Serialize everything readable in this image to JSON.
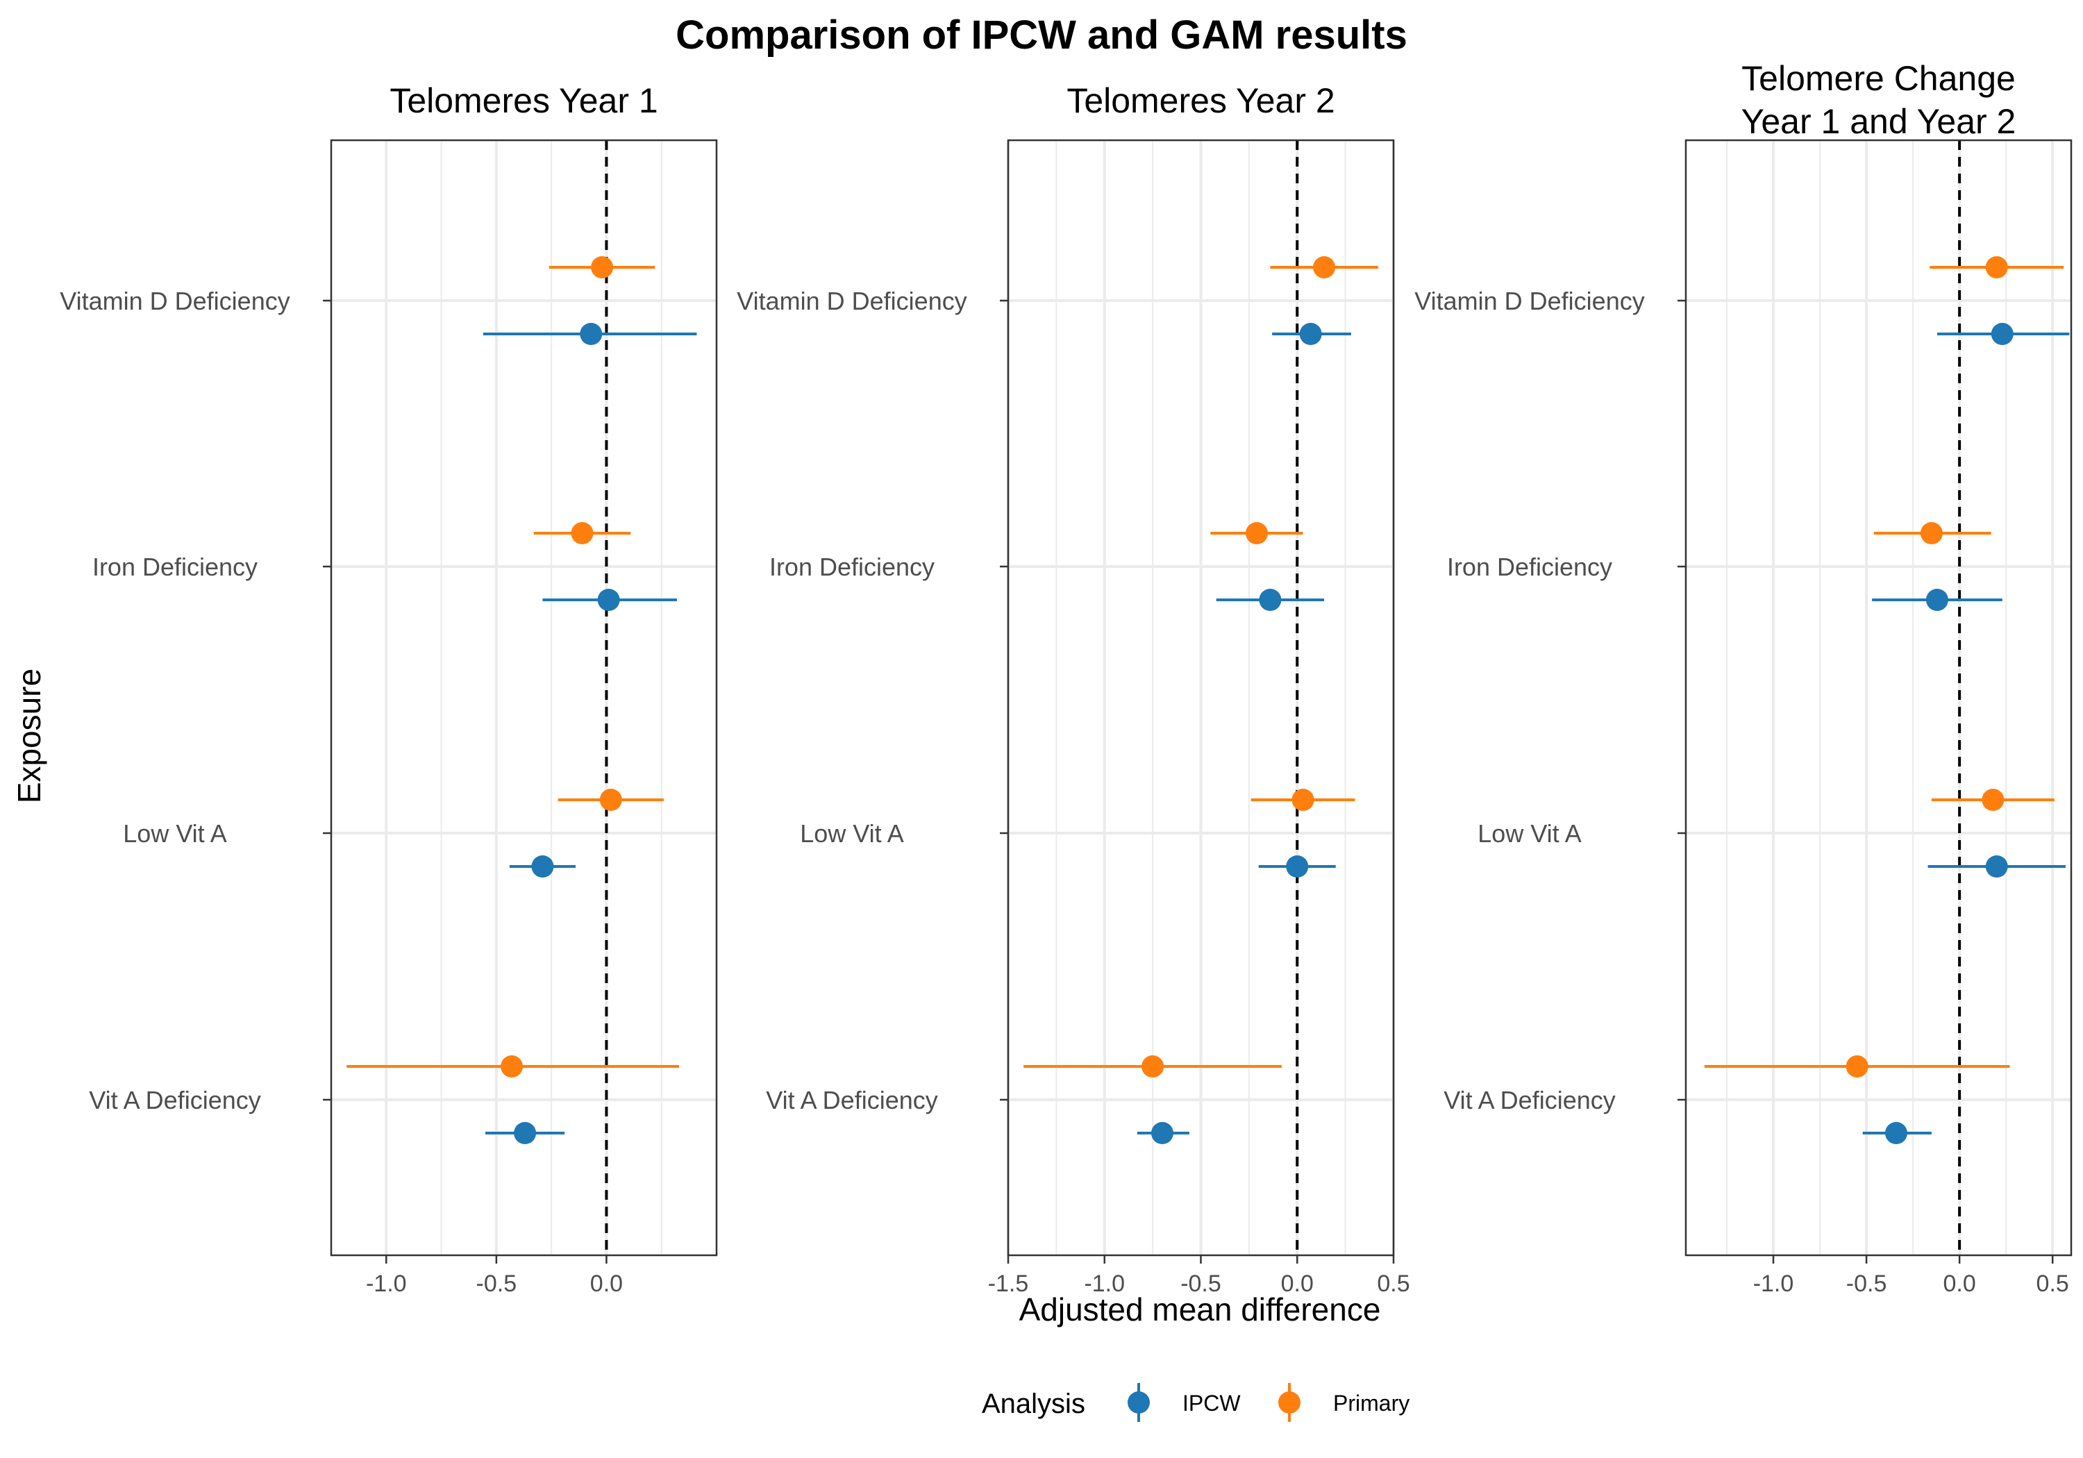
{
  "colors": {
    "IPCW": "#1f77b4",
    "Primary": "#ff7f0e",
    "grid": "#ebebeb",
    "axis": "#333333",
    "ref": "#000000"
  },
  "chart_data": {
    "type": "scatter",
    "title": "Comparison of IPCW and GAM results",
    "xlabel": "Adjusted mean difference",
    "ylabel": "Exposure",
    "categories": [
      "Vitamin D Deficiency",
      "Iron Deficiency",
      "Low Vit A",
      "Vit A Deficiency"
    ],
    "legend": {
      "title": "Analysis",
      "position": "bottom",
      "entries": [
        "IPCW",
        "Primary"
      ]
    },
    "grid": true,
    "reference_line": 0,
    "panels": [
      {
        "title": [
          "Telomeres Year 1"
        ],
        "xlim": [
          -1.25,
          0.5
        ],
        "xticks": [
          -1.0,
          -0.5,
          0.0
        ],
        "xtick_labels": [
          "-1.0",
          "-0.5",
          "0.0"
        ],
        "series": [
          {
            "name": "Primary",
            "points": [
              {
                "category": "Vitamin D Deficiency",
                "estimate": -0.02,
                "lower": -0.26,
                "upper": 0.22
              },
              {
                "category": "Iron Deficiency",
                "estimate": -0.11,
                "lower": -0.33,
                "upper": 0.11
              },
              {
                "category": "Low Vit A",
                "estimate": 0.02,
                "lower": -0.22,
                "upper": 0.26
              },
              {
                "category": "Vit A Deficiency",
                "estimate": -0.43,
                "lower": -1.18,
                "upper": 0.33
              }
            ]
          },
          {
            "name": "IPCW",
            "points": [
              {
                "category": "Vitamin D Deficiency",
                "estimate": -0.07,
                "lower": -0.56,
                "upper": 0.41
              },
              {
                "category": "Iron Deficiency",
                "estimate": 0.01,
                "lower": -0.29,
                "upper": 0.32
              },
              {
                "category": "Low Vit A",
                "estimate": -0.29,
                "lower": -0.44,
                "upper": -0.14
              },
              {
                "category": "Vit A Deficiency",
                "estimate": -0.37,
                "lower": -0.55,
                "upper": -0.19
              }
            ]
          }
        ]
      },
      {
        "title": [
          "Telomeres Year 2"
        ],
        "xlim": [
          -1.5,
          0.5
        ],
        "xticks": [
          -1.5,
          -1.0,
          -0.5,
          0.0,
          0.5
        ],
        "xtick_labels": [
          "-1.5",
          "-1.0",
          "-0.5",
          "0.0",
          "0.5"
        ],
        "series": [
          {
            "name": "Primary",
            "points": [
              {
                "category": "Vitamin D Deficiency",
                "estimate": 0.14,
                "lower": -0.14,
                "upper": 0.42
              },
              {
                "category": "Iron Deficiency",
                "estimate": -0.21,
                "lower": -0.45,
                "upper": 0.03
              },
              {
                "category": "Low Vit A",
                "estimate": 0.03,
                "lower": -0.24,
                "upper": 0.3
              },
              {
                "category": "Vit A Deficiency",
                "estimate": -0.75,
                "lower": -1.42,
                "upper": -0.08
              }
            ]
          },
          {
            "name": "IPCW",
            "points": [
              {
                "category": "Vitamin D Deficiency",
                "estimate": 0.07,
                "lower": -0.13,
                "upper": 0.28
              },
              {
                "category": "Iron Deficiency",
                "estimate": -0.14,
                "lower": -0.42,
                "upper": 0.14
              },
              {
                "category": "Low Vit A",
                "estimate": 0.0,
                "lower": -0.2,
                "upper": 0.2
              },
              {
                "category": "Vit A Deficiency",
                "estimate": -0.7,
                "lower": -0.83,
                "upper": -0.56
              }
            ]
          }
        ]
      },
      {
        "title": [
          "Telomere Change",
          "Year 1 and Year 2"
        ],
        "xlim": [
          -1.47,
          0.6
        ],
        "xticks": [
          -1.0,
          -0.5,
          0.0,
          0.5
        ],
        "xtick_labels": [
          "-1.0",
          "-0.5",
          "0.0",
          "0.5"
        ],
        "series": [
          {
            "name": "Primary",
            "points": [
              {
                "category": "Vitamin D Deficiency",
                "estimate": 0.2,
                "lower": -0.16,
                "upper": 0.56
              },
              {
                "category": "Iron Deficiency",
                "estimate": -0.15,
                "lower": -0.46,
                "upper": 0.17
              },
              {
                "category": "Low Vit A",
                "estimate": 0.18,
                "lower": -0.15,
                "upper": 0.51
              },
              {
                "category": "Vit A Deficiency",
                "estimate": -0.55,
                "lower": -1.37,
                "upper": 0.27
              }
            ]
          },
          {
            "name": "IPCW",
            "points": [
              {
                "category": "Vitamin D Deficiency",
                "estimate": 0.23,
                "lower": -0.12,
                "upper": 0.59
              },
              {
                "category": "Iron Deficiency",
                "estimate": -0.12,
                "lower": -0.47,
                "upper": 0.23
              },
              {
                "category": "Low Vit A",
                "estimate": 0.2,
                "lower": -0.17,
                "upper": 0.57
              },
              {
                "category": "Vit A Deficiency",
                "estimate": -0.34,
                "lower": -0.52,
                "upper": -0.15
              }
            ]
          }
        ]
      }
    ]
  }
}
